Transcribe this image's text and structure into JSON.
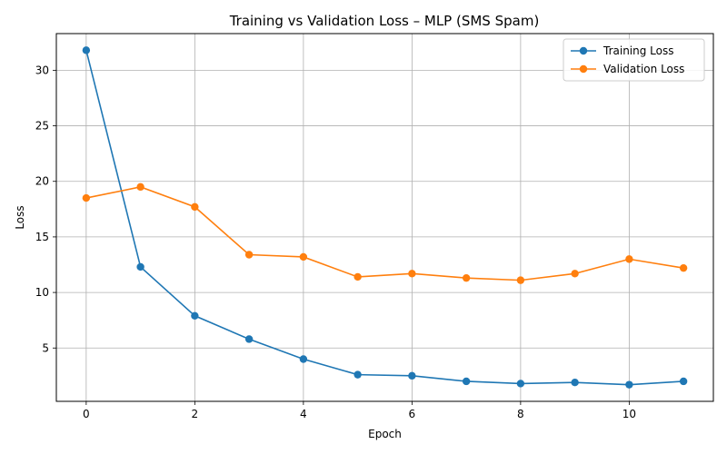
{
  "chart_data": {
    "type": "line",
    "title": "Training vs Validation Loss – MLP (SMS Spam)",
    "xlabel": "Epoch",
    "ylabel": "Loss",
    "xlim": [
      -0.55,
      11.55
    ],
    "ylim": [
      0.2,
      33.3
    ],
    "xticks": [
      0,
      2,
      4,
      6,
      8,
      10
    ],
    "yticks": [
      5,
      10,
      15,
      20,
      25,
      30
    ],
    "grid": true,
    "legend_position": "top-right",
    "x": [
      0,
      1,
      2,
      3,
      4,
      5,
      6,
      7,
      8,
      9,
      10,
      11
    ],
    "series": [
      {
        "name": "Training Loss",
        "color": "#1f77b4",
        "values": [
          31.8,
          12.3,
          7.9,
          5.8,
          4.0,
          2.6,
          2.5,
          2.0,
          1.8,
          1.9,
          1.7,
          2.0
        ]
      },
      {
        "name": "Validation Loss",
        "color": "#ff7f0e",
        "values": [
          18.5,
          19.5,
          17.7,
          13.4,
          13.2,
          11.4,
          11.7,
          11.3,
          11.1,
          11.7,
          13.0,
          12.2
        ]
      }
    ]
  }
}
